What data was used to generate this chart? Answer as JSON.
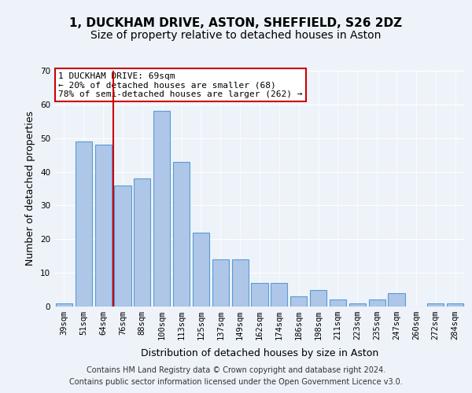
{
  "title": "1, DUCKHAM DRIVE, ASTON, SHEFFIELD, S26 2DZ",
  "subtitle": "Size of property relative to detached houses in Aston",
  "xlabel": "Distribution of detached houses by size in Aston",
  "ylabel": "Number of detached properties",
  "categories": [
    "39sqm",
    "51sqm",
    "64sqm",
    "76sqm",
    "88sqm",
    "100sqm",
    "113sqm",
    "125sqm",
    "137sqm",
    "149sqm",
    "162sqm",
    "174sqm",
    "186sqm",
    "198sqm",
    "211sqm",
    "223sqm",
    "235sqm",
    "247sqm",
    "260sqm",
    "272sqm",
    "284sqm"
  ],
  "values": [
    1,
    49,
    48,
    36,
    38,
    58,
    43,
    22,
    14,
    14,
    7,
    7,
    3,
    5,
    2,
    1,
    2,
    4,
    0,
    1,
    1
  ],
  "bar_color": "#aec6e8",
  "bar_edge_color": "#5b9bd5",
  "vline_x": 2.5,
  "vline_color": "#cc0000",
  "annotation_text": "1 DUCKHAM DRIVE: 69sqm\n← 20% of detached houses are smaller (68)\n78% of semi-detached houses are larger (262) →",
  "annotation_box_color": "#ffffff",
  "annotation_box_edge": "#cc0000",
  "footer1": "Contains HM Land Registry data © Crown copyright and database right 2024.",
  "footer2": "Contains public sector information licensed under the Open Government Licence v3.0.",
  "bg_color": "#eef3fa",
  "plot_bg_color": "#eef3fa",
  "ylim": [
    0,
    70
  ],
  "yticks": [
    0,
    10,
    20,
    30,
    40,
    50,
    60,
    70
  ],
  "title_fontsize": 11,
  "subtitle_fontsize": 10,
  "ylabel_fontsize": 9,
  "xlabel_fontsize": 9,
  "tick_fontsize": 7.5,
  "footer_fontsize": 7,
  "annot_fontsize": 8
}
